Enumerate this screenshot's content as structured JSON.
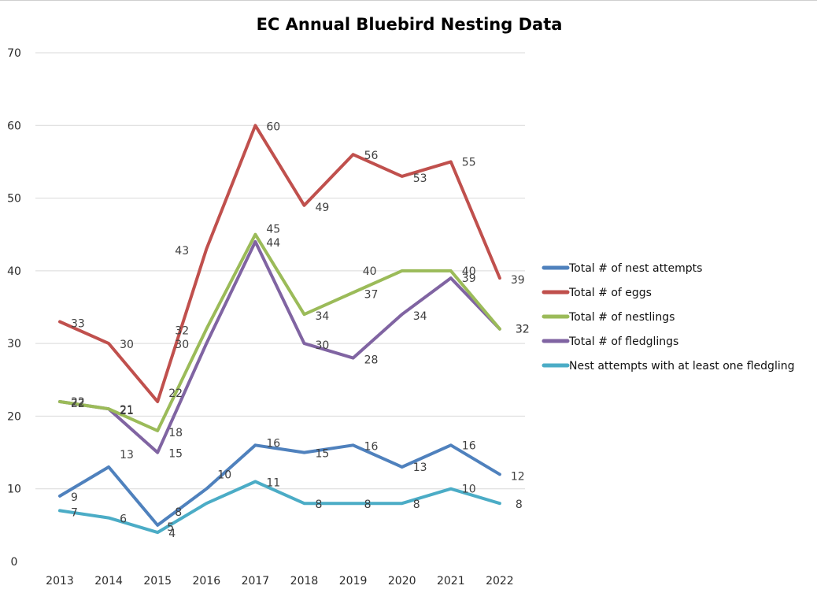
{
  "chart_data": {
    "type": "line",
    "title": "EC Annual Bluebird Nesting Data",
    "categories": [
      "2013",
      "2014",
      "2015",
      "2016",
      "2017",
      "2018",
      "2019",
      "2020",
      "2021",
      "2022"
    ],
    "ylim": [
      0,
      70
    ],
    "yticks": [
      0,
      10,
      20,
      30,
      40,
      50,
      60,
      70
    ],
    "grid": true,
    "legend_position": "right",
    "series": [
      {
        "name": "Total # of nest attempts",
        "color": "#4f81bd",
        "values": [
          9,
          13,
          5,
          10,
          16,
          15,
          16,
          13,
          16,
          12
        ]
      },
      {
        "name": "Total # of eggs",
        "color": "#c0504d",
        "values": [
          33,
          30,
          22,
          43,
          60,
          49,
          56,
          53,
          55,
          39
        ]
      },
      {
        "name": "Total # of nestlings",
        "color": "#9bbb59",
        "values": [
          22,
          21,
          18,
          32,
          45,
          34,
          37,
          40,
          40,
          32
        ]
      },
      {
        "name": "Total # of fledglings",
        "color": "#8064a2",
        "values": [
          22,
          21,
          15,
          30,
          44,
          30,
          28,
          34,
          39,
          32
        ]
      },
      {
        "name": "Nest attempts with at least one fledgling",
        "color": "#4bacc6",
        "values": [
          7,
          6,
          4,
          8,
          11,
          8,
          8,
          8,
          10,
          8
        ]
      }
    ]
  }
}
